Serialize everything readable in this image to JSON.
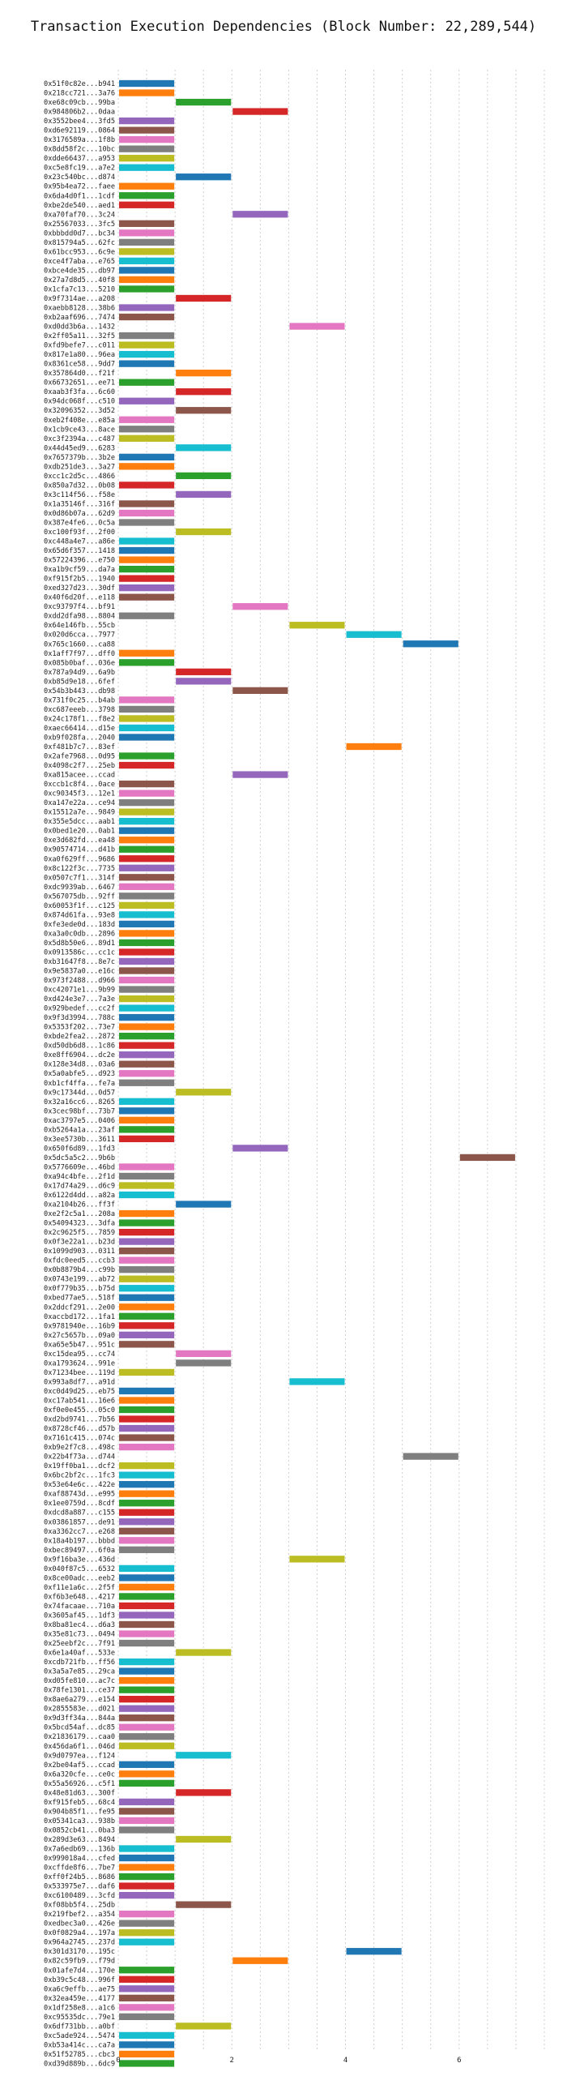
{
  "chart_data": {
    "type": "bar",
    "orientation": "horizontal-gantt",
    "title": "Transaction Execution Dependencies (Block Number: 22,289,544)",
    "xlabel": "",
    "ylabel": "",
    "xlim": [
      0,
      7.5
    ],
    "x_ticks": [
      0,
      2,
      4,
      6
    ],
    "grid": true,
    "legend": "none",
    "palette": [
      "#1f77b4",
      "#ff7f0e",
      "#2ca02c",
      "#d62728",
      "#9467bd",
      "#8c564b",
      "#e377c2",
      "#7f7f7f",
      "#bcbd22",
      "#17becf"
    ],
    "categories": [
      "0x51f0c82e...b941",
      "0x218cc721...3a76",
      "0xe68c09cb...99ba",
      "0x984806b2...0daa",
      "0x3552bee4...3fd5",
      "0xd6e92119...0864",
      "0x3176589a...1f8b",
      "0x8dd58f2c...10bc",
      "0xdde66437...a953",
      "0xc5e8fc19...a7e2",
      "0x23c540bc...d874",
      "0x95b4ea72...faee",
      "0x6da4d0f1...1cdf",
      "0xbe2de540...aed1",
      "0xa70faf70...3c24",
      "0x25567033...3fc5",
      "0xbbbdd0d7...bc34",
      "0x815794a5...62fc",
      "0x61bcc953...6c9e",
      "0xce4f7aba...e765",
      "0xbce4de35...db97",
      "0x27a7d8d5...40f8",
      "0x1cfa7c13...5210",
      "0x9f7314ae...a208",
      "0xaebb8128...38b6",
      "0xb2aaf696...7474",
      "0xd0dd3b6a...1432",
      "0x2ff05a11...32f5",
      "0xfd9befe7...c011",
      "0x817e1a80...96ea",
      "0x8361ce58...9dd7",
      "0x357864d0...f21f",
      "0x66732651...ee71",
      "0xaab3f3fa...6c60",
      "0x94dc068f...c510",
      "0x32096352...3d52",
      "0xeb2f408e...e85a",
      "0x1cb9ce43...8ace",
      "0xc3f2394a...c487",
      "0x44d45ed9...6283",
      "0x7657379b...3b2e",
      "0xdb251de3...3a27",
      "0xcc1c2d5c...4866",
      "0x850a7d32...0b08",
      "0x3c114f56...f58e",
      "0x1a35146f...316f",
      "0x0d86b07a...62d9",
      "0x387e4fe6...0c5a",
      "0xc100f93f...2f00",
      "0xc448a4e7...a86e",
      "0x65d6f357...1418",
      "0x57224396...e750",
      "0xa1b9cf59...da7a",
      "0xf915f2b5...1940",
      "0xed327d23...30df",
      "0x40f6d20f...e118",
      "0xc93797f4...bf91",
      "0xdd2dfa98...8804",
      "0x64e146fb...55cb",
      "0x020d6cca...7977",
      "0x765c1660...ca88",
      "0x1aff7f97...dff0",
      "0x085b0baf...036e",
      "0x787a94d9...6a9b",
      "0xb85d9e18...6fef",
      "0x54b3b443...db98",
      "0x731f0c25...b4ab",
      "0xc687eeeb...3798",
      "0x24c178f1...f8e2",
      "0xaec66414...d15e",
      "0xb9f028fa...2040",
      "0xf481b7c7...83ef",
      "0x2afe7968...0d95",
      "0x4098c2f7...25eb",
      "0xa815acee...ccad",
      "0xccb1c8f4...0ace",
      "0xc90345f3...12e1",
      "0xa147e22a...ce94",
      "0x15512a7e...9849",
      "0x355e5dcc...aab1",
      "0x0bed1e20...0ab1",
      "0xe3d682fd...ea48",
      "0x90574714...d41b",
      "0xa0f629ff...9686",
      "0x8c122f3c...7735",
      "0x0507c7f1...314f",
      "0xdc9939ab...6467",
      "0x567075db...92ff",
      "0x60053f1f...c125",
      "0x874d61fa...93e8",
      "0xfe3ede0d...183d",
      "0xa3a0c0db...2896",
      "0x5d8b50e6...89d1",
      "0x0913586c...cc1c",
      "0xb31647f8...8e7c",
      "0x9e5837a0...e16c",
      "0x973f2488...d966",
      "0xc42071e1...9b99",
      "0xd424e3e7...7a3e",
      "0x929bedef...cc2f",
      "0x9f3d3994...788c",
      "0x5353f202...73e7",
      "0xbde2fea2...2872",
      "0xd50db6d8...1c86",
      "0xe8ff6904...dc2e",
      "0x128e34d8...03a6",
      "0x5a0abfe5...d923",
      "0xb1cf4ffa...fe7a",
      "0x9c17344d...0d57",
      "0x32a16cc6...8265",
      "0x3cec98bf...73b7",
      "0xac3797e5...0406",
      "0xb5264a1a...23af",
      "0x3ee5730b...3611",
      "0x650f6d89...1fd3",
      "0x5dc5a5c2...9b6b",
      "0x5776609e...46bd",
      "0xa94c4bfe...2f1d",
      "0x17d74a29...d6c9",
      "0x6122d4dd...a82a",
      "0xa2104b26...ff3f",
      "0xe2f2c5a1...208a",
      "0x54094323...3dfa",
      "0x2c9625f5...7859",
      "0x0f3e22a1...b23d",
      "0x1099d903...0311",
      "0xfdc0eed5...ccb3",
      "0x0b8879b4...c99b",
      "0x0743e199...ab72",
      "0x0f779b35...b75d",
      "0xbed77ae5...518f",
      "0x2ddcf291...2e00",
      "0xaccbd172...1fa1",
      "0x9781940e...16b9",
      "0x27c5657b...09a0",
      "0xa65e5b47...951c",
      "0xc15dea95...cc74",
      "0xa1793624...991e",
      "0x71234bee...119d",
      "0x993a8df7...a91d",
      "0xc0d49d25...eb75",
      "0xc17ab541...16e6",
      "0xf0e0e455...05c0",
      "0xd2bd9741...7b56",
      "0x8728cf46...d57b",
      "0x7161c415...074c",
      "0xb9e2f7c8...498c",
      "0x22b4f73a...d744",
      "0x19ff0ba1...dcf2",
      "0x6bc2bf2c...1fc3",
      "0x53e64e6c...422e",
      "0xaf88743d...e995",
      "0x1ee0759d...8cdf",
      "0xdcd8a887...c155",
      "0x03861857...de91",
      "0xa3362cc7...e268",
      "0x18a4b197...bbbd",
      "0xbec89497...6f0a",
      "0x9f16ba3e...436d",
      "0x040f87c5...6532",
      "0x8ce00adc...eeb2",
      "0xf11e1a6c...2f5f",
      "0xf6b3e648...4217",
      "0x74facaae...710a",
      "0x3605af45...1df3",
      "0x8ba81ec4...d6a3",
      "0x35e81c73...0494",
      "0x25eebf2c...7f91",
      "0x6e1a40af...533e",
      "0xcdb721fb...ff56",
      "0x3a5a7e85...29ca",
      "0xd05fe810...ac7c",
      "0x78fe1301...ce37",
      "0x8ae6a279...e154",
      "0x2855583e...d021",
      "0x9d3ff34a...844a",
      "0x5bcd54af...dc85",
      "0x21836179...caa0",
      "0x456da6f1...046d",
      "0x9d0797ea...f124",
      "0x2be04af5...ccad",
      "0x6a320cfe...ce0c",
      "0x55a56926...c5f1",
      "0x48e81d63...300f",
      "0xf915feb5...68c4",
      "0x904b85f1...fe95",
      "0x05341ca3...938b",
      "0x0852cb41...0ba3",
      "0x289d3e63...8494",
      "0x7a6edb69...136b",
      "0x999018a4...cfed",
      "0xcffde8f6...7be7",
      "0xff0f24b5...8686",
      "0x533975e7...daf6",
      "0xc6100489...3cfd",
      "0xf08bb5f4...25db",
      "0x219fbef2...a354",
      "0xedbec3a0...426e",
      "0x0f0829a4...197a",
      "0x964a2745...237d",
      "0x301d3170...195c",
      "0x82c59fb9...f79d",
      "0x01afe7d4...170e",
      "0xb39c5c48...996f",
      "0xa6c9effb...ae75",
      "0x32ea459e...4177",
      "0x1df258e8...a1c6",
      "0xc95535dc...79e1",
      "0x6df731bb...a0bf",
      "0xc5ade924...5474",
      "0xb53a414c...ca7a",
      "0x51f52785...cbc3",
      "0xd39d889b...6dc9"
    ],
    "starts": [
      0,
      0,
      1,
      2,
      0,
      0,
      0,
      0,
      0,
      0,
      1,
      0,
      0,
      0,
      2,
      0,
      0,
      0,
      0,
      0,
      0,
      0,
      0,
      1,
      0,
      0,
      3,
      0,
      0,
      0,
      0,
      1,
      0,
      1,
      0,
      1,
      0,
      0,
      0,
      1,
      0,
      0,
      1,
      0,
      1,
      0,
      0,
      0,
      1,
      0,
      0,
      0,
      0,
      0,
      0,
      0,
      2,
      0,
      3,
      4,
      5,
      0,
      0,
      1,
      1,
      2,
      0,
      0,
      0,
      0,
      0,
      4,
      0,
      0,
      2,
      0,
      0,
      0,
      0,
      0,
      0,
      0,
      0,
      0,
      0,
      0,
      0,
      0,
      0,
      0,
      0,
      0,
      0,
      0,
      0,
      0,
      0,
      0,
      0,
      0,
      0,
      0,
      0,
      0,
      0,
      0,
      0,
      0,
      1,
      0,
      0,
      0,
      0,
      0,
      2,
      6,
      0,
      0,
      0,
      0,
      1,
      0,
      0,
      0,
      0,
      0,
      0,
      0,
      0,
      0,
      0,
      0,
      0,
      0,
      0,
      0,
      1,
      1,
      0,
      3,
      0,
      0,
      0,
      0,
      0,
      0,
      0,
      5,
      0,
      0,
      0,
      0,
      0,
      0,
      0,
      0,
      0,
      0,
      3,
      0,
      0,
      0,
      0,
      0,
      0,
      0,
      0,
      0,
      1,
      0,
      0,
      0,
      0,
      0,
      0,
      0,
      0,
      0,
      0,
      1,
      0,
      0,
      0,
      1,
      0,
      0,
      0,
      0,
      1,
      0,
      0,
      0,
      0,
      0,
      0,
      1,
      0,
      0,
      0,
      0,
      4,
      2,
      0,
      0,
      0,
      0,
      0,
      0,
      1,
      0,
      0,
      0,
      0
    ],
    "durations": [
      1,
      1,
      1,
      1,
      1,
      1,
      1,
      1,
      1,
      1,
      1,
      1,
      1,
      1,
      1,
      1,
      1,
      1,
      1,
      1,
      1,
      1,
      1,
      1,
      1,
      1,
      1,
      1,
      1,
      1,
      1,
      1,
      1,
      1,
      1,
      1,
      1,
      1,
      1,
      1,
      1,
      1,
      1,
      1,
      1,
      1,
      1,
      1,
      1,
      1,
      1,
      1,
      1,
      1,
      1,
      1,
      1,
      1,
      1,
      1,
      1,
      1,
      1,
      1,
      1,
      1,
      1,
      1,
      1,
      1,
      1,
      1,
      1,
      1,
      1,
      1,
      1,
      1,
      1,
      1,
      1,
      1,
      1,
      1,
      1,
      1,
      1,
      1,
      1,
      1,
      1,
      1,
      1,
      1,
      1,
      1,
      1,
      1,
      1,
      1,
      1,
      1,
      1,
      1,
      1,
      1,
      1,
      1,
      1,
      1,
      1,
      1,
      1,
      1,
      1,
      1,
      1,
      1,
      1,
      1,
      1,
      1,
      1,
      1,
      1,
      1,
      1,
      1,
      1,
      1,
      1,
      1,
      1,
      1,
      1,
      1,
      1,
      1,
      1,
      1,
      1,
      1,
      1,
      1,
      1,
      1,
      1,
      1,
      1,
      1,
      1,
      1,
      1,
      1,
      1,
      1,
      1,
      1,
      1,
      1,
      1,
      1,
      1,
      1,
      1,
      1,
      1,
      1,
      1,
      1,
      1,
      1,
      1,
      1,
      1,
      1,
      1,
      1,
      1,
      1,
      1,
      1,
      1,
      1,
      1,
      1,
      1,
      1,
      1,
      1,
      1,
      1,
      1,
      1,
      1,
      1,
      1,
      1,
      1,
      1,
      1,
      1,
      1,
      1,
      1,
      1,
      1,
      1,
      1,
      1,
      1,
      1,
      1
    ]
  }
}
